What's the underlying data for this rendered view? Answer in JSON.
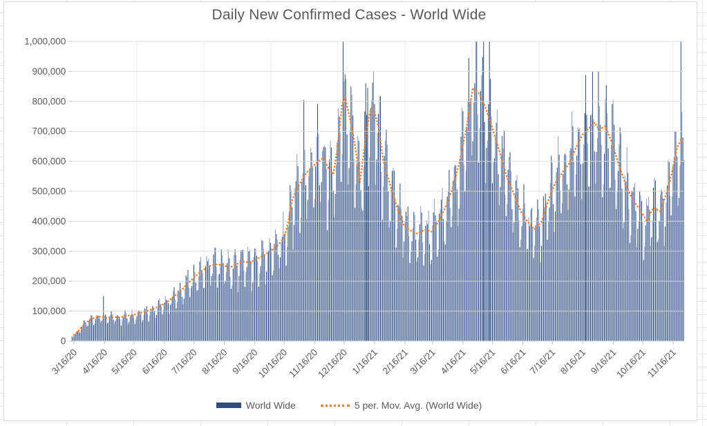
{
  "chart": {
    "title": "Daily New Confirmed Cases - World Wide",
    "legend": [
      {
        "label": "World Wide",
        "swatch": "bar",
        "color": "#2E4D7E"
      },
      {
        "label": "5 per. Mov. Avg. (World Wide)",
        "swatch": "dotted-line",
        "color": "#ED7D31"
      }
    ]
  },
  "colors": {
    "bar_dark": "#2F4F80",
    "bar_light": "#8E9FC1",
    "moving_avg": "#ED7D31",
    "gridline": "#D9D9D9",
    "axis_tick": "#C0C0C0",
    "axis_text": "#595959",
    "sheet_grid": "#E7E7E9",
    "chart_border": "#DADADA"
  },
  "chart_data": {
    "type": "bar",
    "title": "Daily New Confirmed Cases - World Wide",
    "xlabel": "",
    "ylabel": "",
    "y_unit": "daily new confirmed cases",
    "ylim": [
      0,
      1000000
    ],
    "y_tick_step": 100000,
    "y_tick_labels": [
      "0",
      "100,000",
      "200,000",
      "300,000",
      "400,000",
      "500,000",
      "600,000",
      "700,000",
      "800,000",
      "900,000",
      "1,000,000"
    ],
    "grid": true,
    "legend_position": "bottom",
    "start_date": "3/14/20",
    "end_date": "11/27/21",
    "n_days": 624,
    "x_ticks": [
      {
        "label": "3/16/20",
        "day": 2
      },
      {
        "label": "4/16/20",
        "day": 33
      },
      {
        "label": "5/16/20",
        "day": 63
      },
      {
        "label": "6/16/20",
        "day": 94
      },
      {
        "label": "7/16/20",
        "day": 124
      },
      {
        "label": "8/16/20",
        "day": 155
      },
      {
        "label": "9/16/20",
        "day": 186
      },
      {
        "label": "10/16/20",
        "day": 216
      },
      {
        "label": "11/16/20",
        "day": 247
      },
      {
        "label": "12/16/20",
        "day": 277
      },
      {
        "label": "1/16/21",
        "day": 308
      },
      {
        "label": "2/16/21",
        "day": 339
      },
      {
        "label": "3/16/21",
        "day": 367
      },
      {
        "label": "4/16/21",
        "day": 398
      },
      {
        "label": "5/16/21",
        "day": 428
      },
      {
        "label": "6/16/21",
        "day": 459
      },
      {
        "label": "7/16/21",
        "day": 489
      },
      {
        "label": "8/16/21",
        "day": 520
      },
      {
        "label": "9/16/21",
        "day": 551
      },
      {
        "label": "10/16/21",
        "day": 581
      },
      {
        "label": "11/16/21",
        "day": 612
      }
    ],
    "series": [
      {
        "name": "World Wide",
        "type": "bar",
        "note": "daily values estimated as moving-average envelope times day-of-week factor; start date 3/14/20 was a Saturday",
        "weekly_factors_sun_to_sat": [
          0.7,
          0.8,
          0.97,
          1.09,
          1.15,
          1.12,
          0.95
        ],
        "jitter_amplitude": 0.2,
        "spikes_day_value_k": [
          [
            32,
            150
          ],
          [
            236,
            805
          ],
          [
            250,
            790
          ],
          [
            276,
            1000
          ],
          [
            299,
            860
          ],
          [
            301,
            845
          ],
          [
            404,
            945
          ],
          [
            419,
            1000
          ],
          [
            425,
            1000
          ],
          [
            523,
            888
          ],
          [
            536,
            900
          ],
          [
            620,
            1000
          ]
        ]
      },
      {
        "name": "5 per. Mov. Avg. (World Wide)",
        "type": "dotted_line",
        "anchors_day_value_k": [
          [
            0,
            15
          ],
          [
            6,
            32
          ],
          [
            13,
            58
          ],
          [
            20,
            75
          ],
          [
            27,
            82
          ],
          [
            34,
            78
          ],
          [
            41,
            80
          ],
          [
            48,
            79
          ],
          [
            55,
            84
          ],
          [
            62,
            87
          ],
          [
            69,
            93
          ],
          [
            76,
            100
          ],
          [
            83,
            108
          ],
          [
            90,
            118
          ],
          [
            97,
            131
          ],
          [
            104,
            149
          ],
          [
            111,
            168
          ],
          [
            118,
            193
          ],
          [
            125,
            215
          ],
          [
            132,
            234
          ],
          [
            139,
            249
          ],
          [
            146,
            256
          ],
          [
            153,
            255
          ],
          [
            160,
            245
          ],
          [
            167,
            256
          ],
          [
            174,
            265
          ],
          [
            181,
            262
          ],
          [
            188,
            274
          ],
          [
            195,
            286
          ],
          [
            202,
            300
          ],
          [
            209,
            318
          ],
          [
            216,
            345
          ],
          [
            220,
            395
          ],
          [
            224,
            470
          ],
          [
            230,
            515
          ],
          [
            237,
            555
          ],
          [
            244,
            580
          ],
          [
            251,
            600
          ],
          [
            256,
            612
          ],
          [
            262,
            570
          ],
          [
            266,
            556
          ],
          [
            270,
            640
          ],
          [
            275,
            790
          ],
          [
            278,
            815
          ],
          [
            282,
            755
          ],
          [
            286,
            695
          ],
          [
            290,
            610
          ],
          [
            293,
            528
          ],
          [
            296,
            600
          ],
          [
            299,
            680
          ],
          [
            302,
            745
          ],
          [
            305,
            780
          ],
          [
            308,
            765
          ],
          [
            312,
            715
          ],
          [
            317,
            600
          ],
          [
            324,
            520
          ],
          [
            331,
            445
          ],
          [
            338,
            385
          ],
          [
            345,
            368
          ],
          [
            352,
            358
          ],
          [
            359,
            372
          ],
          [
            366,
            365
          ],
          [
            373,
            398
          ],
          [
            380,
            445
          ],
          [
            387,
            505
          ],
          [
            394,
            590
          ],
          [
            401,
            700
          ],
          [
            408,
            845
          ],
          [
            415,
            825
          ],
          [
            422,
            770
          ],
          [
            429,
            700
          ],
          [
            436,
            625
          ],
          [
            443,
            545
          ],
          [
            450,
            490
          ],
          [
            457,
            432
          ],
          [
            464,
            398
          ],
          [
            471,
            372
          ],
          [
            478,
            398
          ],
          [
            485,
            470
          ],
          [
            492,
            528
          ],
          [
            499,
            562
          ],
          [
            506,
            592
          ],
          [
            513,
            645
          ],
          [
            520,
            690
          ],
          [
            527,
            712
          ],
          [
            532,
            730
          ],
          [
            537,
            705
          ],
          [
            543,
            718
          ],
          [
            550,
            660
          ],
          [
            557,
            585
          ],
          [
            564,
            520
          ],
          [
            571,
            470
          ],
          [
            578,
            440
          ],
          [
            585,
            402
          ],
          [
            592,
            445
          ],
          [
            599,
            432
          ],
          [
            606,
            500
          ],
          [
            612,
            580
          ],
          [
            616,
            645
          ],
          [
            620,
            672
          ],
          [
            623,
            660
          ]
        ]
      }
    ]
  }
}
